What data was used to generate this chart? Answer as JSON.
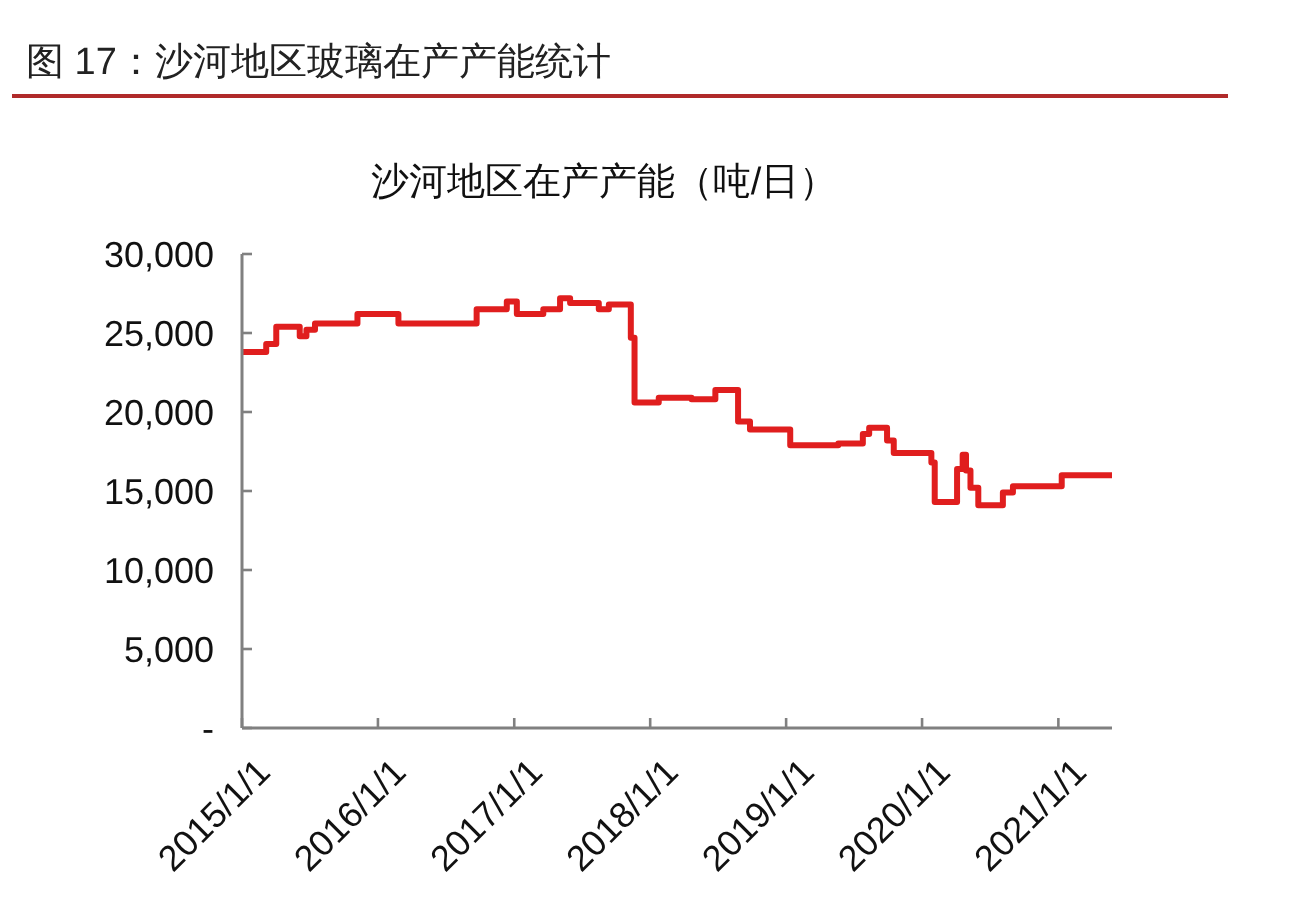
{
  "chart_data": {
    "type": "step",
    "title": "图 17：沙河地区玻璃在产产能统计",
    "subtitle": "沙河地区在产产能（吨/日）",
    "x": [
      "2015-01-01",
      "2015-03-07",
      "2015-04-03",
      "2015-06-05",
      "2015-06-23",
      "2015-07-16",
      "2015-11-07",
      "2016-02-25",
      "2016-09-22",
      "2016-12-12",
      "2017-01-08",
      "2017-03-20",
      "2017-05-04",
      "2017-05-31",
      "2017-08-16",
      "2017-09-12",
      "2017-11-10",
      "2017-11-20",
      "2018-01-24",
      "2018-04-22",
      "2018-06-25",
      "2018-08-25",
      "2018-09-26",
      "2019-01-12",
      "2019-05-21",
      "2019-07-26",
      "2019-08-12",
      "2019-09-29",
      "2019-10-17",
      "2020-01-26",
      "2020-02-04",
      "2020-04-04",
      "2020-04-19",
      "2020-04-28",
      "2020-05-10",
      "2020-05-31",
      "2020-08-05",
      "2020-09-01",
      "2021-01-10",
      "2021-05-25"
    ],
    "values": [
      23800,
      24300,
      25400,
      24800,
      25200,
      25600,
      26200,
      25600,
      26500,
      27000,
      26200,
      26500,
      27200,
      26900,
      26500,
      26800,
      24700,
      20600,
      20900,
      20800,
      21400,
      19400,
      18900,
      17900,
      18000,
      18600,
      19000,
      18200,
      17400,
      16800,
      14300,
      16400,
      17300,
      16300,
      15200,
      14100,
      14900,
      15300,
      16000,
      16000
    ],
    "color": "#e01e1e",
    "xlim": [
      "2015-01-01",
      "2021-05-25"
    ],
    "xticks": [
      {
        "value": "2015-01-01",
        "label": "2015/1/1"
      },
      {
        "value": "2016-01-01",
        "label": "2016/1/1"
      },
      {
        "value": "2017-01-01",
        "label": "2017/1/1"
      },
      {
        "value": "2018-01-01",
        "label": "2018/1/1"
      },
      {
        "value": "2019-01-01",
        "label": "2019/1/1"
      },
      {
        "value": "2020-01-01",
        "label": "2020/1/1"
      },
      {
        "value": "2021-01-01",
        "label": "2021/1/1"
      }
    ],
    "ylim": [
      0,
      30000
    ],
    "yticks": [
      {
        "value": 0,
        "label": "-"
      },
      {
        "value": 5000,
        "label": "5,000"
      },
      {
        "value": 10000,
        "label": "10,000"
      },
      {
        "value": 15000,
        "label": "15,000"
      },
      {
        "value": 20000,
        "label": "20,000"
      },
      {
        "value": 25000,
        "label": "25,000"
      },
      {
        "value": 30000,
        "label": "30,000"
      }
    ],
    "marker": "none",
    "line_style": "solid"
  }
}
